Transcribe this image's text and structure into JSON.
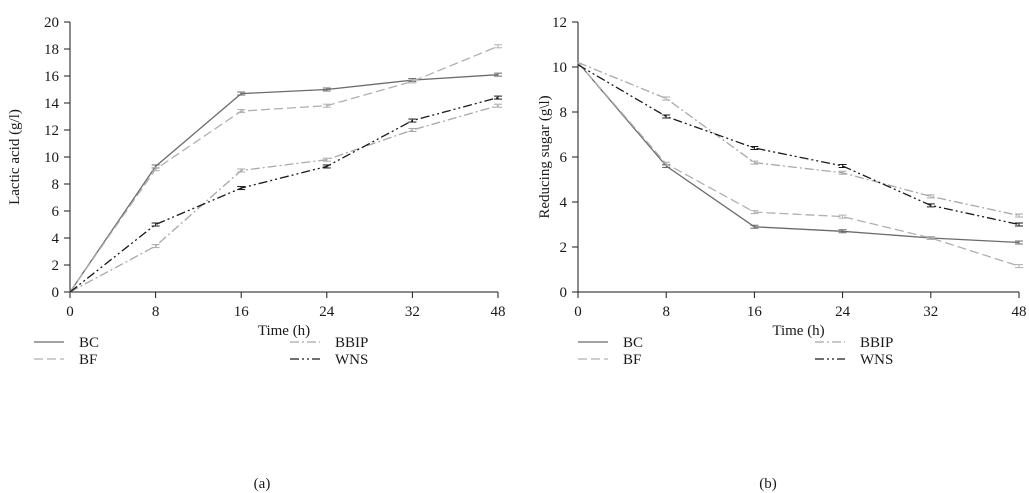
{
  "chart_data": [
    {
      "type": "line",
      "panel_label": "(a)",
      "xlabel": "Time (h)",
      "ylabel": "Lactic acid (g/l)",
      "categories": [
        "0",
        "8",
        "16",
        "24",
        "32",
        "48"
      ],
      "ylim": [
        0,
        20
      ],
      "yticks": [
        "0",
        "2",
        "4",
        "6",
        "8",
        "10",
        "12",
        "14",
        "16",
        "18",
        "20"
      ],
      "grid": false,
      "legend_position": "bottom",
      "series": [
        {
          "name": "BC",
          "values": [
            0,
            9.3,
            14.7,
            15.0,
            15.7,
            16.1
          ],
          "color": "#6b6b6b",
          "dash": "solid"
        },
        {
          "name": "BF",
          "values": [
            0,
            9.1,
            13.4,
            13.8,
            15.6,
            18.2
          ],
          "color": "#b0b0b0",
          "dash": "dashed"
        },
        {
          "name": "BBIP",
          "values": [
            0,
            3.4,
            9.0,
            9.8,
            12.0,
            13.8
          ],
          "color": "#a8a8a8",
          "dash": "dashdot"
        },
        {
          "name": "WNS",
          "values": [
            0,
            5.0,
            7.7,
            9.3,
            12.7,
            14.4
          ],
          "color": "#1a1a1a",
          "dash": "dashdotdot"
        }
      ]
    },
    {
      "type": "line",
      "panel_label": "(b)",
      "xlabel": "Time (h)",
      "ylabel": "Reducing sugar (g\\l)",
      "categories": [
        "0",
        "8",
        "16",
        "24",
        "32",
        "48"
      ],
      "ylim": [
        0,
        12
      ],
      "yticks": [
        "0",
        "2",
        "4",
        "6",
        "8",
        "10",
        "12"
      ],
      "grid": false,
      "legend_position": "bottom",
      "series": [
        {
          "name": "BC",
          "values": [
            10.2,
            5.6,
            2.9,
            2.7,
            2.4,
            2.2
          ],
          "color": "#6b6b6b",
          "dash": "solid"
        },
        {
          "name": "BF",
          "values": [
            10.2,
            5.7,
            3.55,
            3.35,
            2.4,
            1.15
          ],
          "color": "#b0b0b0",
          "dash": "dashed"
        },
        {
          "name": "BBIP",
          "values": [
            10.2,
            8.6,
            5.75,
            5.3,
            4.25,
            3.4
          ],
          "color": "#a8a8a8",
          "dash": "dashdot"
        },
        {
          "name": "WNS",
          "values": [
            10.1,
            7.8,
            6.4,
            5.6,
            3.85,
            3.0
          ],
          "color": "#1a1a1a",
          "dash": "dashdotdot"
        }
      ]
    }
  ]
}
